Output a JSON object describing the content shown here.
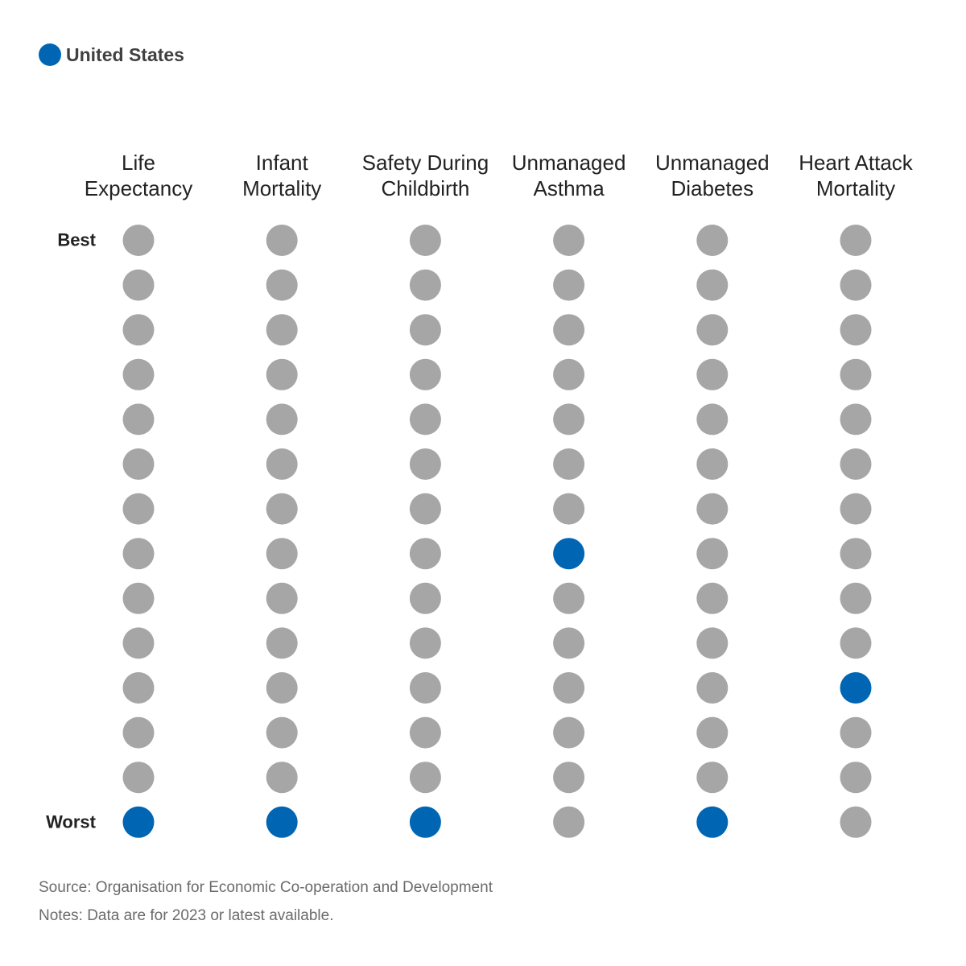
{
  "legend": {
    "label": "United States",
    "color": "#0066b3"
  },
  "colors": {
    "highlight": "#0066b3",
    "other": "#a6a6a6"
  },
  "chart_data": {
    "type": "dot-rank",
    "legend": [
      {
        "name": "United States",
        "color": "#0066b3"
      }
    ],
    "rank_labels": {
      "best": "Best",
      "worst": "Worst"
    },
    "rank_count": 14,
    "categories": [
      {
        "label_lines": [
          "Life",
          "Expectancy"
        ],
        "us_rank": 14
      },
      {
        "label_lines": [
          "Infant",
          "Mortality"
        ],
        "us_rank": 14
      },
      {
        "label_lines": [
          "Safety During",
          "Childbirth"
        ],
        "us_rank": 14
      },
      {
        "label_lines": [
          "Unmanaged",
          "Asthma"
        ],
        "us_rank": 8
      },
      {
        "label_lines": [
          "Unmanaged",
          "Diabetes"
        ],
        "us_rank": 14
      },
      {
        "label_lines": [
          "Heart Attack",
          "Mortality"
        ],
        "us_rank": 11
      }
    ]
  },
  "footer": {
    "source": "Source: Organisation for Economic Co-operation and Development",
    "notes": "Notes: Data are for 2023 or latest available."
  }
}
